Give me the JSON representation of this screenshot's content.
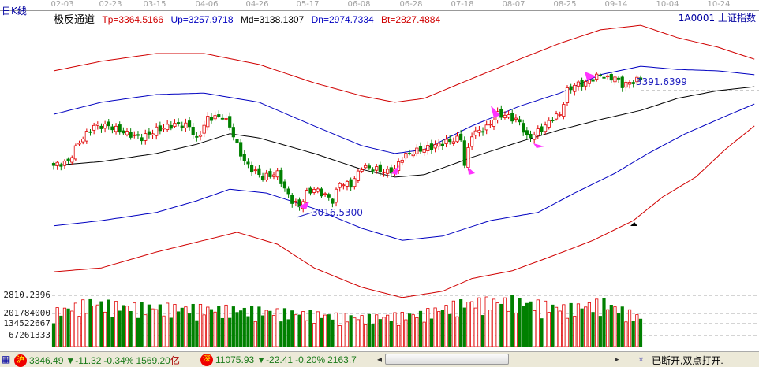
{
  "period_label": "日K线",
  "indicator": {
    "name": "极反通道",
    "tp": "Tp=3364.5166",
    "up": "Up=3257.9718",
    "md": "Md=3138.1307",
    "dn": "Dn=2974.7334",
    "bt": "Bt=2827.4884"
  },
  "security": "1A0001  上证指数",
  "date_ticks": [
    "02-03",
    "02-23",
    "03-15",
    "04-06",
    "04-26",
    "05-17",
    "06-08",
    "06-28",
    "07-18",
    "08-07",
    "08-25",
    "09-14",
    "10-04",
    "10-24"
  ],
  "annotations": {
    "high": "3391.6399",
    "low": "3016.5300"
  },
  "volume_axis": {
    "top_label": "2810.2396",
    "labels": [
      "201784000",
      "134522667",
      "67261333"
    ]
  },
  "colors": {
    "up": "#e00000",
    "down": "#008000",
    "band_outer": "#d00000",
    "band_inner": "#0000c0",
    "mid": "#000000",
    "signal": "#ff33ff"
  },
  "chart_data": {
    "type": "candlestick",
    "close_keypoints": [
      [
        0,
        3146
      ],
      [
        4,
        3157
      ],
      [
        7,
        3213
      ],
      [
        11,
        3258
      ],
      [
        15,
        3258
      ],
      [
        20,
        3236
      ],
      [
        24,
        3224
      ],
      [
        28,
        3247
      ],
      [
        33,
        3262
      ],
      [
        37,
        3258
      ],
      [
        39,
        3218
      ],
      [
        42,
        3280
      ],
      [
        46,
        3285
      ],
      [
        48,
        3258
      ],
      [
        50,
        3202
      ],
      [
        52,
        3157
      ],
      [
        54,
        3135
      ],
      [
        57,
        3113
      ],
      [
        61,
        3124
      ],
      [
        63,
        3079
      ],
      [
        65,
        3046
      ],
      [
        67,
        3030
      ],
      [
        69,
        3068
      ],
      [
        71,
        3079
      ],
      [
        74,
        3062
      ],
      [
        76,
        3046
      ],
      [
        78,
        3097
      ],
      [
        81,
        3091
      ],
      [
        84,
        3142
      ],
      [
        88,
        3135
      ],
      [
        91,
        3128
      ],
      [
        93,
        3135
      ],
      [
        95,
        3169
      ],
      [
        97,
        3180
      ],
      [
        100,
        3191
      ],
      [
        104,
        3202
      ],
      [
        107,
        3213
      ],
      [
        109,
        3218
      ],
      [
        111,
        3224
      ],
      [
        112,
        3146
      ],
      [
        114,
        3235
      ],
      [
        118,
        3253
      ],
      [
        121,
        3291
      ],
      [
        124,
        3285
      ],
      [
        127,
        3269
      ],
      [
        129,
        3224
      ],
      [
        131,
        3235
      ],
      [
        134,
        3258
      ],
      [
        136,
        3280
      ],
      [
        138,
        3291
      ],
      [
        140,
        3358
      ],
      [
        142,
        3374
      ],
      [
        145,
        3380
      ],
      [
        147,
        3392
      ],
      [
        149,
        3403
      ],
      [
        151,
        3392
      ],
      [
        153,
        3396
      ],
      [
        155,
        3374
      ],
      [
        157,
        3380
      ],
      [
        160,
        3392
      ]
    ],
    "bands": {
      "tp": [
        [
          0,
          3414
        ],
        [
          13,
          3441
        ],
        [
          28,
          3463
        ],
        [
          41,
          3463
        ],
        [
          56,
          3432
        ],
        [
          71,
          3380
        ],
        [
          84,
          3343
        ],
        [
          93,
          3325
        ],
        [
          101,
          3336
        ],
        [
          114,
          3392
        ],
        [
          127,
          3447
        ],
        [
          138,
          3492
        ],
        [
          149,
          3530
        ],
        [
          160,
          3543
        ],
        [
          170,
          3508
        ],
        [
          181,
          3481
        ],
        [
          191,
          3447
        ]
      ],
      "up": [
        [
          0,
          3291
        ],
        [
          13,
          3325
        ],
        [
          28,
          3347
        ],
        [
          41,
          3351
        ],
        [
          56,
          3325
        ],
        [
          71,
          3258
        ],
        [
          84,
          3202
        ],
        [
          93,
          3180
        ],
        [
          101,
          3191
        ],
        [
          114,
          3258
        ],
        [
          127,
          3314
        ],
        [
          138,
          3351
        ],
        [
          149,
          3403
        ],
        [
          160,
          3427
        ],
        [
          170,
          3418
        ],
        [
          181,
          3414
        ],
        [
          191,
          3403
        ]
      ],
      "md": [
        [
          0,
          3146
        ],
        [
          13,
          3157
        ],
        [
          28,
          3180
        ],
        [
          39,
          3206
        ],
        [
          48,
          3236
        ],
        [
          56,
          3224
        ],
        [
          71,
          3180
        ],
        [
          84,
          3135
        ],
        [
          93,
          3113
        ],
        [
          101,
          3120
        ],
        [
          114,
          3169
        ],
        [
          127,
          3213
        ],
        [
          138,
          3247
        ],
        [
          149,
          3276
        ],
        [
          160,
          3302
        ],
        [
          170,
          3336
        ],
        [
          181,
          3358
        ],
        [
          191,
          3369
        ]
      ],
      "dn": [
        [
          0,
          2975
        ],
        [
          13,
          2990
        ],
        [
          28,
          3013
        ],
        [
          39,
          3046
        ],
        [
          48,
          3079
        ],
        [
          58,
          3068
        ],
        [
          71,
          3024
        ],
        [
          84,
          2968
        ],
        [
          95,
          2934
        ],
        [
          106,
          2946
        ],
        [
          119,
          2990
        ],
        [
          132,
          3013
        ],
        [
          142,
          3068
        ],
        [
          153,
          3124
        ],
        [
          162,
          3180
        ],
        [
          172,
          3235
        ],
        [
          183,
          3285
        ],
        [
          191,
          3320
        ]
      ],
      "bt": [
        [
          0,
          2845
        ],
        [
          13,
          2856
        ],
        [
          28,
          2901
        ],
        [
          41,
          2934
        ],
        [
          50,
          2957
        ],
        [
          61,
          2923
        ],
        [
          71,
          2856
        ],
        [
          84,
          2801
        ],
        [
          95,
          2772
        ],
        [
          106,
          2790
        ],
        [
          114,
          2826
        ],
        [
          125,
          2848
        ],
        [
          136,
          2890
        ],
        [
          147,
          2934
        ],
        [
          158,
          2990
        ],
        [
          166,
          3057
        ],
        [
          175,
          3113
        ],
        [
          183,
          3191
        ],
        [
          191,
          3258
        ]
      ]
    },
    "volume_keypoints": [
      [
        0,
        180000000
      ],
      [
        10,
        230000000
      ],
      [
        20,
        210000000
      ],
      [
        40,
        200000000
      ],
      [
        55,
        190000000
      ],
      [
        70,
        170000000
      ],
      [
        85,
        150000000
      ],
      [
        100,
        170000000
      ],
      [
        112,
        230000000
      ],
      [
        125,
        240000000
      ],
      [
        140,
        200000000
      ],
      [
        150,
        230000000
      ],
      [
        160,
        150000000
      ]
    ]
  },
  "status_bar": {
    "sh_badge": "沪",
    "sh_index": "3346.49",
    "sh_change": "-11.32",
    "sh_pct": "-0.34%",
    "sh_amount": "1569.20",
    "unit": "亿",
    "sz_badge": "深",
    "sz_index": "11075.93",
    "sz_change": "-22.41",
    "sz_pct": "-0.20%",
    "sz_amount": "2163.7",
    "connection": "已断开,双点打开."
  }
}
